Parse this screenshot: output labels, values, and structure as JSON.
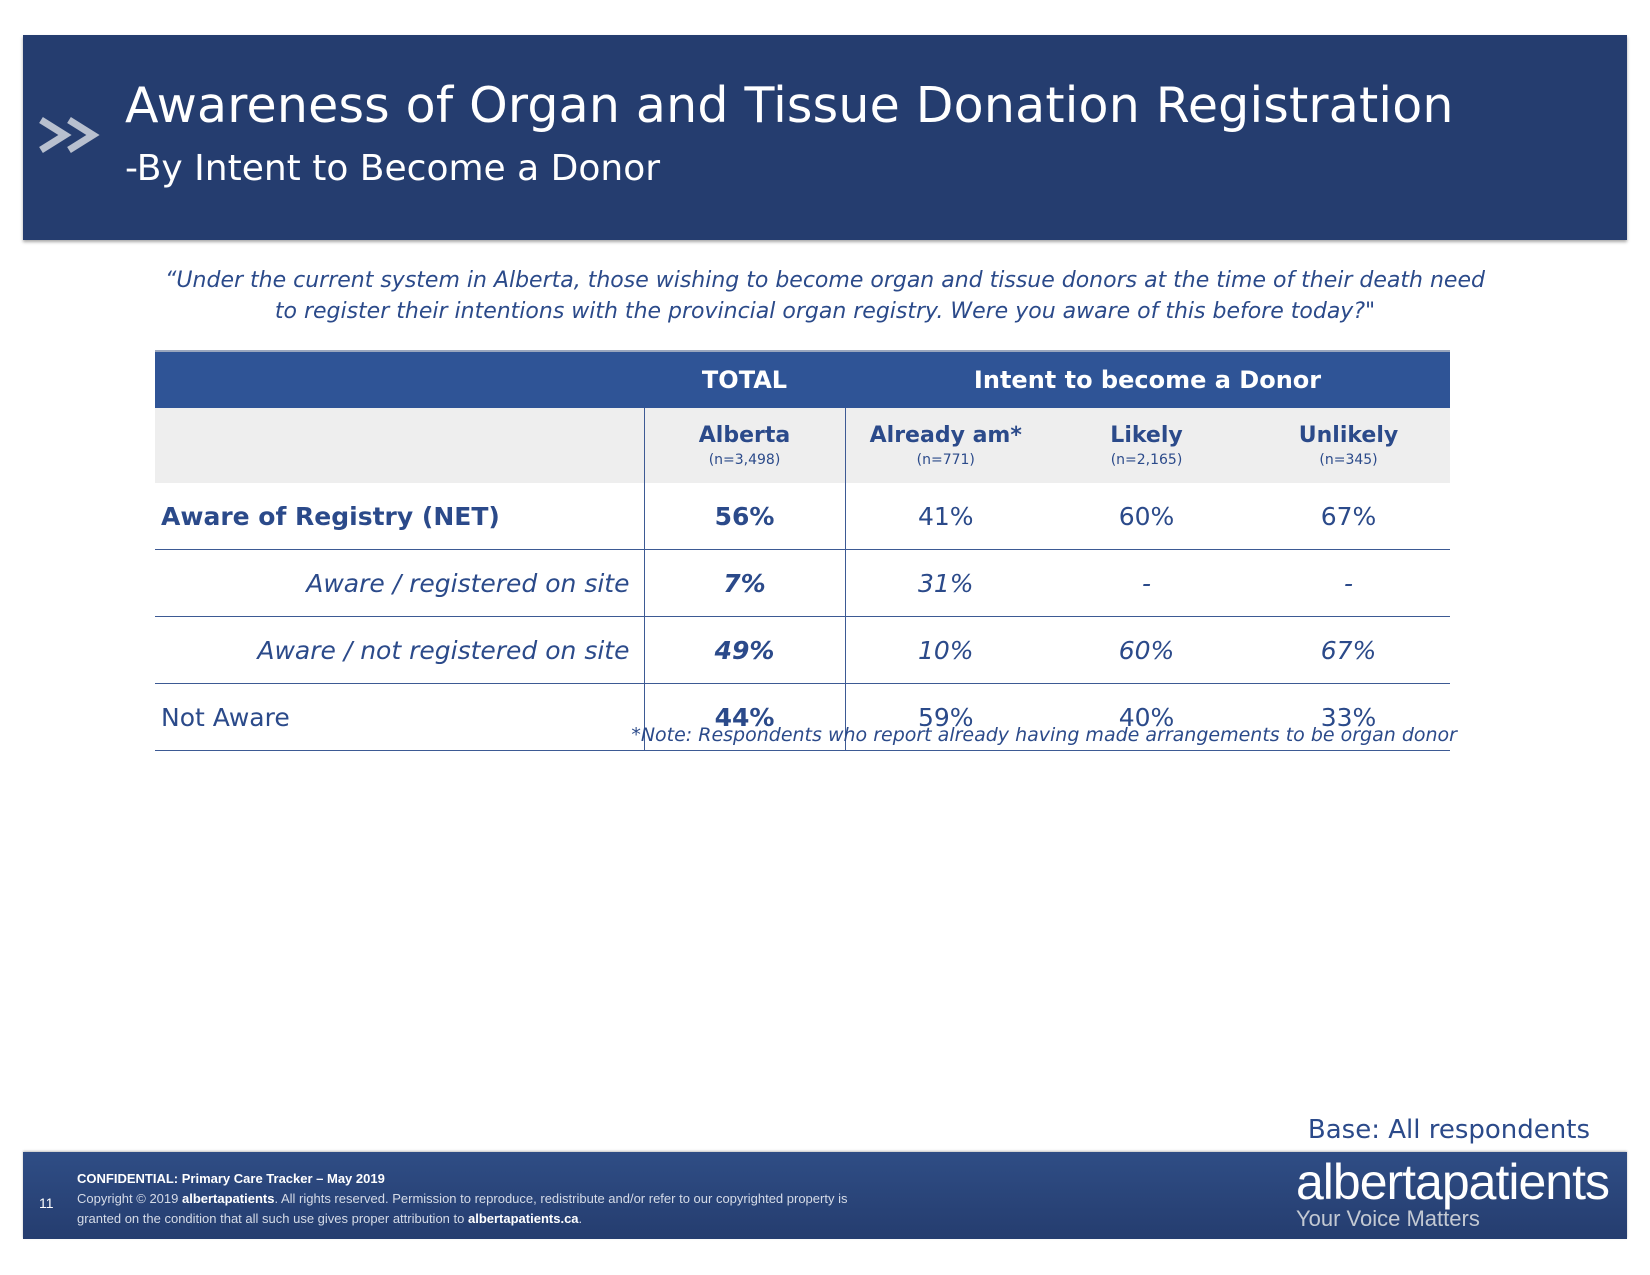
{
  "header": {
    "title": "Awareness of Organ and Tissue Donation Registration",
    "subtitle": "-By Intent to Become a Donor"
  },
  "question": {
    "line1": "“Under the current system in Alberta, those wishing to become organ and tissue donors at the time of their death need",
    "line2": "to register their intentions with the provincial organ registry. Were you aware of this before today?\""
  },
  "table": {
    "band": {
      "total": "TOTAL",
      "intent": "Intent to become a Donor"
    },
    "columns": [
      {
        "label": "Alberta",
        "n": "(n=3,498)"
      },
      {
        "label": "Already am*",
        "n": "(n=771)"
      },
      {
        "label": "Likely",
        "n": "(n=2,165)"
      },
      {
        "label": "Unlikely",
        "n": "(n=345)"
      }
    ],
    "rows": [
      {
        "label": "Aware of Registry (NET)",
        "values": [
          "56%",
          "41%",
          "60%",
          "67%"
        ]
      },
      {
        "label": "Aware / registered on site",
        "values": [
          "7%",
          "31%",
          "-",
          "-"
        ]
      },
      {
        "label": "Aware / not registered on site",
        "values": [
          "49%",
          "10%",
          "60%",
          "67%"
        ]
      },
      {
        "label": "Not Aware",
        "values": [
          "44%",
          "59%",
          "40%",
          "33%"
        ]
      }
    ]
  },
  "note": "*Note: Respondents who report already having made arrangements to be organ donor",
  "base": "Base: All respondents",
  "footer": {
    "page_number": "11",
    "confidential_label": "CONFIDENTIAL:",
    "confidential_text": "Primary Care Tracker – May 2019",
    "copyright_prefix": "Copyright © 2019",
    "copyright_brand": "albertapatients",
    "copyright_rest": ". All rights reserved. Permission to reproduce, redistribute and/or refer to our copyrighted property is",
    "line3_prefix": "granted on the condition that all such use gives proper attribution to",
    "line3_site": "albertapatients.ca",
    "line3_suffix": ".",
    "logo_name": "albertapatients",
    "logo_tagline": "Your Voice Matters"
  },
  "colors": {
    "header_bg": "#253d6f",
    "table_header_bg": "#2f5496",
    "text_blue": "#2b4a8a",
    "subheader_bg": "#eeeeee"
  }
}
